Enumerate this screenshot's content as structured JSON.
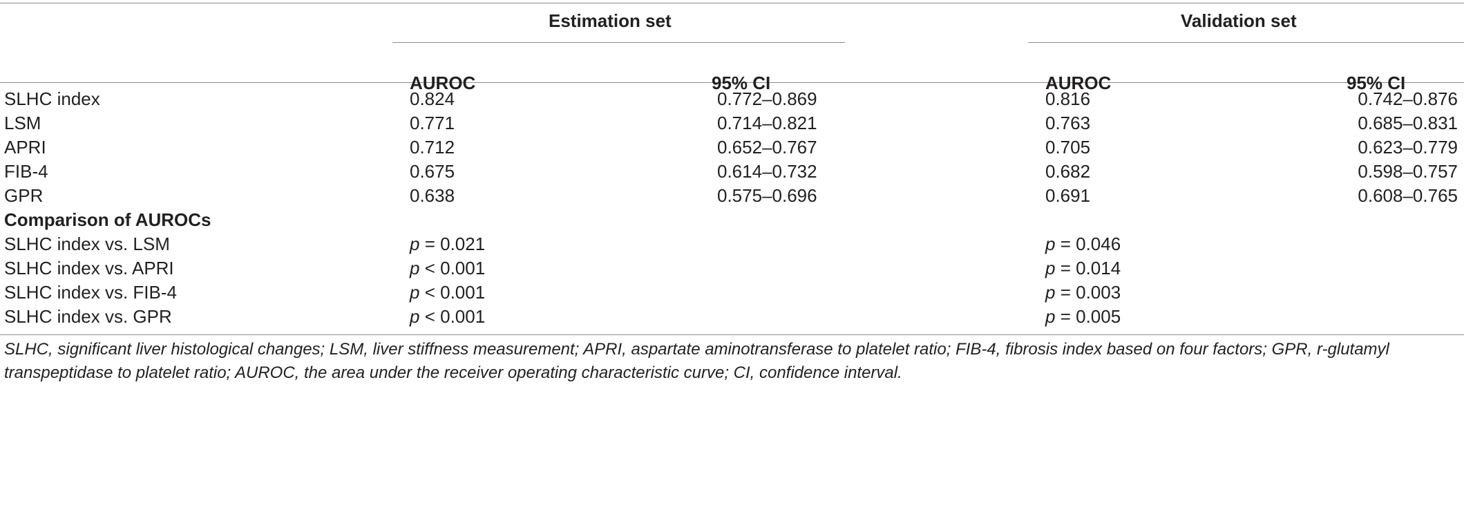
{
  "groups": {
    "estimation": "Estimation set",
    "validation": "Validation set"
  },
  "subheaders": {
    "est_auroc": "AUROC",
    "est_ci": "95% CI",
    "val_auroc": "AUROC",
    "val_ci": "95% CI"
  },
  "rows": [
    {
      "label": "SLHC index",
      "est_auroc": "0.824",
      "est_ci": "0.772–0.869",
      "val_auroc": "0.816",
      "val_ci": "0.742–0.876"
    },
    {
      "label": "LSM",
      "est_auroc": "0.771",
      "est_ci": "0.714–0.821",
      "val_auroc": "0.763",
      "val_ci": "0.685–0.831"
    },
    {
      "label": "APRI",
      "est_auroc": "0.712",
      "est_ci": "0.652–0.767",
      "val_auroc": "0.705",
      "val_ci": "0.623–0.779"
    },
    {
      "label": "FIB-4",
      "est_auroc": "0.675",
      "est_ci": "0.614–0.732",
      "val_auroc": "0.682",
      "val_ci": "0.598–0.757"
    },
    {
      "label": "GPR",
      "est_auroc": "0.638",
      "est_ci": "0.575–0.696",
      "val_auroc": "0.691",
      "val_ci": "0.608–0.765"
    }
  ],
  "comparison": {
    "heading": "Comparison of AUROCs",
    "p_symbol": "p",
    "rows": [
      {
        "label": "SLHC index vs. LSM",
        "est": "= 0.021",
        "val": "= 0.046"
      },
      {
        "label": "SLHC index vs. APRI",
        "est": "< 0.001",
        "val": "= 0.014"
      },
      {
        "label": "SLHC index vs. FIB-4",
        "est": "< 0.001",
        "val": "= 0.003"
      },
      {
        "label": "SLHC index vs. GPR",
        "est": "< 0.001",
        "val": "= 0.005"
      }
    ]
  },
  "footnote": "SLHC, significant liver histological changes; LSM, liver stiffness measurement; APRI, aspartate aminotransferase to platelet ratio; FIB-4, fibrosis index based on four factors; GPR, r-glutamyl transpeptidase to platelet ratio; AUROC, the area under the receiver operating characteristic curve; CI, confidence interval."
}
